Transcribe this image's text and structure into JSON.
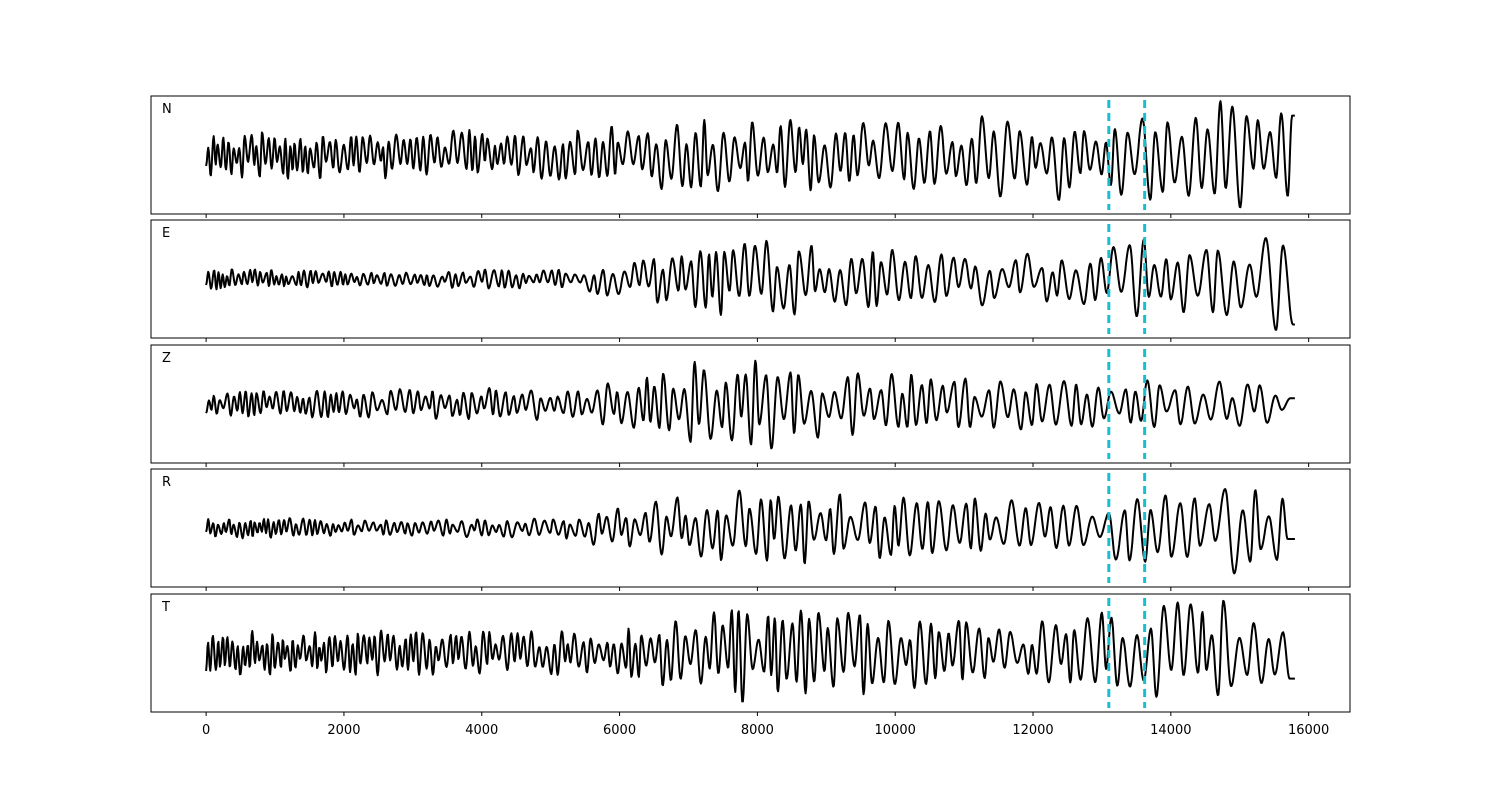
{
  "chart_data": {
    "type": "line",
    "title": "",
    "xlabel": "",
    "ylabel": "",
    "xlim": [
      -800,
      16600
    ],
    "x_ticks": [
      0,
      2000,
      4000,
      6000,
      8000,
      10000,
      12000,
      14000,
      16000
    ],
    "x_tick_labels": [
      "0",
      "2000",
      "4000",
      "6000",
      "8000",
      "10000",
      "12000",
      "14000",
      "16000"
    ],
    "sample_range": [
      0,
      15800
    ],
    "grid": false,
    "legend": "none",
    "trace_color": "#000000",
    "marker_color": "#17becf",
    "markers": [
      13100,
      13620
    ],
    "panels": [
      {
        "label": "N",
        "seed": 11,
        "envelope": [
          [
            0,
            0.42
          ],
          [
            5400,
            0.45
          ],
          [
            7000,
            0.65
          ],
          [
            11000,
            0.6
          ],
          [
            11600,
            0.85
          ],
          [
            13000,
            0.75
          ],
          [
            14900,
            1.0
          ],
          [
            15800,
            0.7
          ]
        ],
        "period_start": 70,
        "period_end": 170
      },
      {
        "label": "E",
        "seed": 23,
        "envelope": [
          [
            0,
            0.2
          ],
          [
            2500,
            0.12
          ],
          [
            5500,
            0.22
          ],
          [
            6400,
            0.45
          ],
          [
            8000,
            0.72
          ],
          [
            9500,
            0.55
          ],
          [
            12500,
            0.45
          ],
          [
            13400,
            0.72
          ],
          [
            14600,
            0.6
          ],
          [
            15400,
            1.0
          ],
          [
            15800,
            0.85
          ]
        ],
        "period_start": 70,
        "period_end": 200
      },
      {
        "label": "Z",
        "seed": 37,
        "envelope": [
          [
            0,
            0.22
          ],
          [
            5500,
            0.3
          ],
          [
            6500,
            0.55
          ],
          [
            7000,
            0.92
          ],
          [
            7900,
            0.85
          ],
          [
            9500,
            0.55
          ],
          [
            12000,
            0.45
          ],
          [
            13500,
            0.4
          ],
          [
            14100,
            0.5
          ],
          [
            15800,
            0.3
          ]
        ],
        "period_start": 90,
        "period_end": 180
      },
      {
        "label": "R",
        "seed": 53,
        "envelope": [
          [
            0,
            0.22
          ],
          [
            2500,
            0.14
          ],
          [
            5000,
            0.18
          ],
          [
            6300,
            0.45
          ],
          [
            7700,
            0.72
          ],
          [
            9500,
            0.6
          ],
          [
            12700,
            0.45
          ],
          [
            13400,
            0.7
          ],
          [
            14200,
            0.55
          ],
          [
            14900,
            1.0
          ],
          [
            15800,
            0.65
          ]
        ],
        "period_start": 70,
        "period_end": 200
      },
      {
        "label": "T",
        "seed": 71,
        "envelope": [
          [
            0,
            0.4
          ],
          [
            5500,
            0.4
          ],
          [
            7000,
            0.65
          ],
          [
            7700,
            0.95
          ],
          [
            9300,
            0.75
          ],
          [
            12000,
            0.55
          ],
          [
            13200,
            0.75
          ],
          [
            14800,
            1.0
          ],
          [
            15800,
            0.55
          ]
        ],
        "period_start": 60,
        "period_end": 170
      }
    ]
  }
}
